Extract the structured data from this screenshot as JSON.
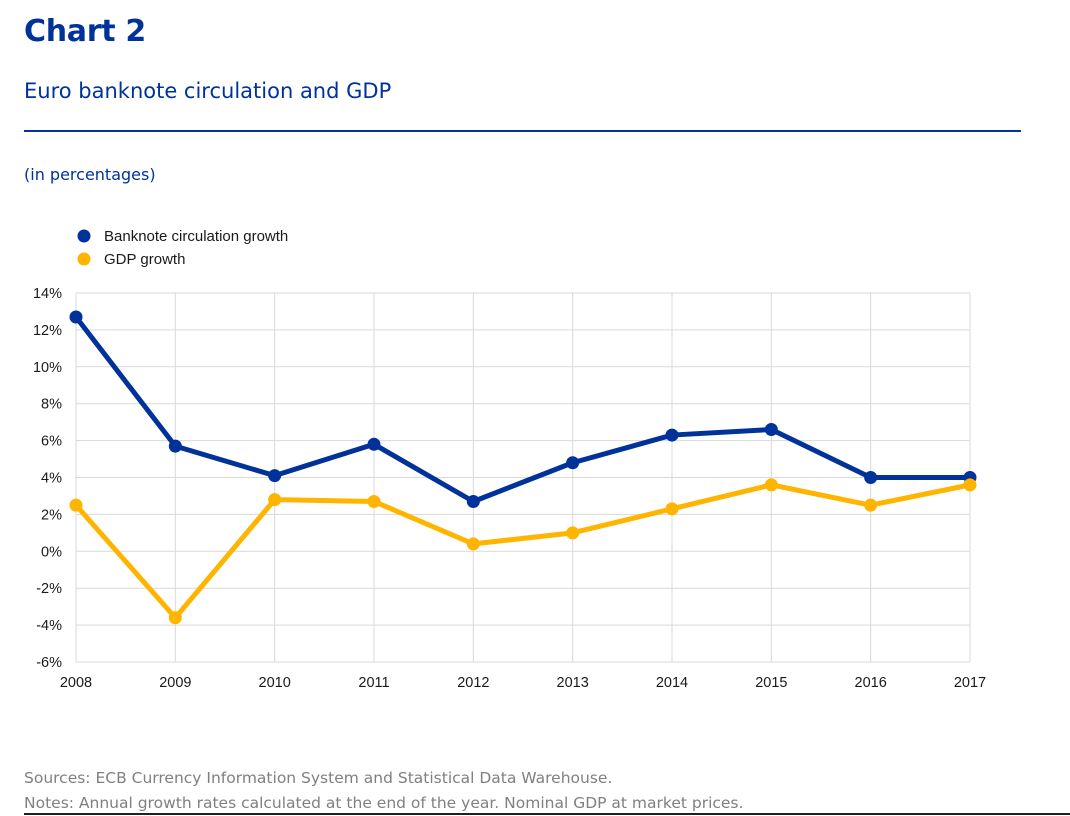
{
  "header": {
    "chart_label": "Chart 2",
    "title": "Euro banknote circulation and GDP",
    "units": "(in percentages)"
  },
  "footer": {
    "sources": "Sources: ECB Currency Information System and Statistical Data Warehouse.",
    "notes": "Notes: Annual growth rates calculated at the end of the year. Nominal GDP at market prices."
  },
  "colors": {
    "brand_blue": "#003299",
    "series_blue": "#003299",
    "series_yellow": "#FFB400",
    "grid": "#d9d9d9",
    "footnote_gray": "#808080"
  },
  "chart_data": {
    "type": "line",
    "title": "Euro banknote circulation and GDP",
    "xlabel": "",
    "ylabel": "",
    "x": [
      "2008",
      "2009",
      "2010",
      "2011",
      "2012",
      "2013",
      "2014",
      "2015",
      "2016",
      "2017"
    ],
    "ylim": [
      -6,
      14
    ],
    "y_ticks": [
      14,
      12,
      10,
      8,
      6,
      4,
      2,
      0,
      -2,
      -4,
      -6
    ],
    "y_tick_labels": [
      "14%",
      "12%",
      "10%",
      "8%",
      "6%",
      "4%",
      "2%",
      "0%",
      "-2%",
      "-4%",
      "-6%"
    ],
    "grid": true,
    "legend_position": "top-left",
    "series": [
      {
        "name": "Banknote circulation growth",
        "color": "#003299",
        "values": [
          12.7,
          5.7,
          4.1,
          5.8,
          2.7,
          4.8,
          6.3,
          6.6,
          4.0,
          4.0
        ]
      },
      {
        "name": "GDP growth",
        "color": "#FFB400",
        "values": [
          2.5,
          -3.6,
          2.8,
          2.7,
          0.4,
          1.0,
          2.3,
          3.6,
          2.5,
          3.6
        ]
      }
    ]
  }
}
